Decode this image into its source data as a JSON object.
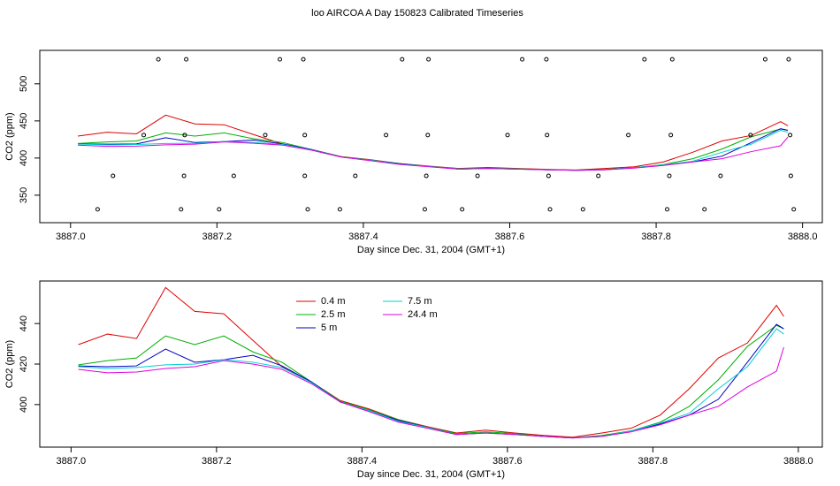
{
  "chart_data": [
    {
      "type": "line",
      "title": "loo AIRCOA A  Day 150823  Calibrated Timeseries",
      "xlabel": "Day since Dec. 31, 2004 (GMT+1)",
      "ylabel": "CO2 (ppm)",
      "xlim": [
        3886.958,
        3888.027
      ],
      "ylim": [
        313,
        545
      ],
      "xticks": [
        {
          "value": 3887,
          "label": "3887.0"
        },
        3887.2,
        3887.4,
        3887.6,
        3887.8,
        {
          "value": 3888,
          "label": "3888.0"
        }
      ],
      "yticks": [
        350,
        400,
        450,
        500
      ],
      "x": [
        3887.01,
        3887.05,
        3887.09,
        3887.13,
        3887.17,
        3887.21,
        3887.25,
        3887.29,
        3887.33,
        3887.37,
        3887.41,
        3887.45,
        3887.49,
        3887.53,
        3887.57,
        3887.61,
        3887.65,
        3887.69,
        3887.73,
        3887.77,
        3887.81,
        3887.85,
        3887.89,
        3887.93,
        3887.97,
        3887.98
      ],
      "series": [
        {
          "color": "#e00000",
          "values": [
            429.6,
            434.8,
            432.6,
            457.8,
            446,
            444.8,
            431.7,
            418.7,
            411.3,
            402,
            397.8,
            392.6,
            389.1,
            386,
            387.4,
            386,
            384.8,
            383.9,
            386,
            388.3,
            394.8,
            407.8,
            423,
            430.4,
            449,
            443.5
          ]
        },
        {
          "color": "#00b000",
          "values": [
            419.6,
            421.7,
            423,
            433.9,
            429.6,
            433.9,
            426,
            420.9,
            411.3,
            401.7,
            397.4,
            392.6,
            388.7,
            385.7,
            386.5,
            385.7,
            384.3,
            383.5,
            384.8,
            387,
            391.3,
            399.1,
            412.2,
            428.7,
            439.1,
            437.4
          ]
        },
        {
          "color": "#0000c0",
          "values": [
            419.1,
            418.7,
            419.1,
            427.4,
            420.9,
            422.2,
            424.3,
            419.1,
            411.3,
            401.3,
            397,
            392.2,
            388.7,
            385.2,
            386,
            385.2,
            384.3,
            383.5,
            384.3,
            387,
            390.4,
            394.8,
            402.6,
            420.9,
            439.6,
            437.4
          ]
        },
        {
          "color": "#00d0d0",
          "values": [
            418.7,
            417.8,
            418.3,
            419.6,
            420,
            422.2,
            420.9,
            418.3,
            410.9,
            401.3,
            397,
            391.7,
            388.7,
            385.2,
            386,
            385.2,
            384.3,
            383.5,
            384.3,
            387,
            390.9,
            395.7,
            407.8,
            418.7,
            437.4,
            434.8
          ]
        },
        {
          "color": "#e000e0",
          "values": [
            417.4,
            415.7,
            416.1,
            417.8,
            418.7,
            421.7,
            420,
            417.4,
            410.4,
            401.3,
            396.5,
            391.3,
            388.3,
            385.2,
            386,
            385.2,
            384.3,
            383.5,
            384.3,
            386.5,
            390,
            394.8,
            399.1,
            408.7,
            416.5,
            428.3
          ]
        }
      ],
      "points": {
        "color": "#000000",
        "x": [
          3887.12,
          3887.158,
          3887.286,
          3887.318,
          3887.453,
          3887.489,
          3887.617,
          3887.65,
          3887.784,
          3887.822,
          3887.949,
          3887.981,
          3887.1,
          3887.156,
          3887.266,
          3887.32,
          3887.431,
          3887.488,
          3887.597,
          3887.651,
          3887.762,
          3887.82,
          3887.929,
          3887.983,
          3887.058,
          3887.155,
          3887.223,
          3887.32,
          3887.389,
          3887.486,
          3887.556,
          3887.653,
          3887.721,
          3887.818,
          3887.888,
          3887.984,
          3887.037,
          3887.151,
          3887.203,
          3887.324,
          3887.368,
          3887.484,
          3887.535,
          3887.655,
          3887.7,
          3887.815,
          3887.866,
          3887.988
        ],
        "y": [
          533,
          533,
          533,
          533,
          533,
          533,
          533,
          533,
          533,
          533,
          533,
          533,
          431,
          431,
          431,
          431,
          431,
          431,
          431,
          431,
          431,
          431,
          431,
          431,
          376,
          376,
          376,
          376,
          376,
          376,
          376,
          376,
          376,
          376,
          376,
          376,
          331,
          331,
          331,
          331,
          331,
          331,
          331,
          331,
          331,
          331,
          331,
          331
        ]
      }
    },
    {
      "type": "line",
      "xlabel": "Day since Dec. 31, 2004 (GMT+1)",
      "ylabel": "CO2 (ppm)",
      "xlim": [
        3886.957,
        3888.033
      ],
      "ylim": [
        379,
        461
      ],
      "xticks": [
        {
          "value": 3887,
          "label": "3887.0"
        },
        3887.2,
        3887.4,
        3887.6,
        3887.8,
        {
          "value": 3888,
          "label": "3888.0"
        }
      ],
      "yticks": [
        400,
        420,
        440
      ],
      "legend": "top-left",
      "x": [
        3887.01,
        3887.05,
        3887.09,
        3887.13,
        3887.17,
        3887.21,
        3887.25,
        3887.29,
        3887.33,
        3887.37,
        3887.41,
        3887.45,
        3887.49,
        3887.53,
        3887.57,
        3887.61,
        3887.65,
        3887.69,
        3887.73,
        3887.77,
        3887.81,
        3887.85,
        3887.89,
        3887.93,
        3887.97,
        3887.98
      ],
      "series": [
        {
          "name": "0.4 m",
          "color": "#e00000",
          "values": [
            429.6,
            434.8,
            432.6,
            457.8,
            446,
            444.8,
            431.7,
            418.7,
            411.3,
            402,
            397.8,
            392.6,
            389.1,
            386,
            387.4,
            386,
            384.8,
            383.9,
            386,
            388.3,
            394.8,
            407.8,
            423,
            430.4,
            449,
            443.5
          ]
        },
        {
          "name": "2.5 m",
          "color": "#00b000",
          "values": [
            419.6,
            421.7,
            423,
            433.9,
            429.6,
            433.9,
            426,
            420.9,
            411.3,
            401.7,
            397.4,
            392.6,
            388.7,
            385.7,
            386.5,
            385.7,
            384.3,
            383.5,
            384.8,
            387,
            391.3,
            399.1,
            412.2,
            428.7,
            439.1,
            437.4
          ]
        },
        {
          "name": "5 m",
          "color": "#0000c0",
          "values": [
            419.1,
            418.7,
            419.1,
            427.4,
            420.9,
            422.2,
            424.3,
            419.1,
            411.3,
            401.3,
            397,
            392.2,
            388.7,
            385.2,
            386,
            385.2,
            384.3,
            383.5,
            384.3,
            387,
            390.4,
            394.8,
            402.6,
            420.9,
            439.6,
            437.4
          ]
        },
        {
          "name": "7.5 m",
          "color": "#00d0d0",
          "values": [
            418.7,
            417.8,
            418.3,
            419.6,
            420,
            422.2,
            420.9,
            418.3,
            410.9,
            401.3,
            397,
            391.7,
            388.7,
            385.2,
            386,
            385.2,
            384.3,
            383.5,
            384.3,
            387,
            390.9,
            395.7,
            407.8,
            418.7,
            437.4,
            434.8
          ]
        },
        {
          "name": "24.4 m",
          "color": "#e000e0",
          "values": [
            417.4,
            415.7,
            416.1,
            417.8,
            418.7,
            421.7,
            420,
            417.4,
            410.4,
            401.3,
            396.5,
            391.3,
            388.3,
            385.2,
            386,
            385.2,
            384.3,
            383.5,
            384.3,
            386.5,
            390,
            394.8,
            399.1,
            408.7,
            416.5,
            428.3
          ]
        }
      ]
    }
  ]
}
